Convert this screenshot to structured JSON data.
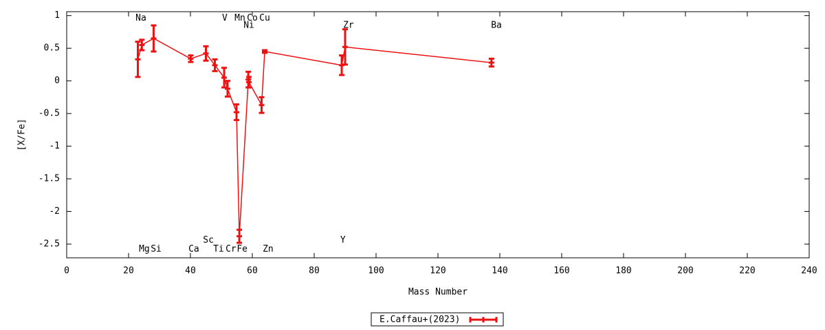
{
  "chart_data": {
    "type": "errorline",
    "xlabel": "Mass Number",
    "ylabel": "[X/Fe]",
    "xlim": [
      0,
      240
    ],
    "ylim": [
      -2.71,
      1.06
    ],
    "xticks": [
      0,
      20,
      40,
      60,
      80,
      100,
      120,
      140,
      160,
      180,
      200,
      220,
      240
    ],
    "yticks": [
      1,
      0.5,
      0,
      -0.5,
      -1,
      -1.5,
      -2,
      -2.5
    ],
    "legend": "bottom-center",
    "series": [
      {
        "name": "E.Caffau+(2023)",
        "color": "#ee1111",
        "x": [
          23.0,
          24.3,
          28.1,
          40.1,
          45.0,
          47.9,
          50.9,
          52.0,
          54.9,
          55.8,
          58.7,
          58.9,
          63.0,
          64.0,
          88.9,
          90.0,
          137.3
        ],
        "values": [
          0.33,
          0.55,
          0.65,
          0.34,
          0.42,
          0.24,
          0.05,
          -0.12,
          -0.48,
          -2.38,
          0.02,
          -0.02,
          -0.37,
          0.45,
          0.24,
          0.52,
          0.28
        ],
        "errors": [
          0.27,
          0.08,
          0.2,
          0.05,
          0.11,
          0.09,
          0.15,
          0.12,
          0.12,
          0.1,
          0.12,
          0.08,
          0.12,
          0.02,
          0.15,
          0.27,
          0.06
        ]
      }
    ],
    "annotations": [
      {
        "text": "Na",
        "x": 24,
        "y": 0.96
      },
      {
        "text": "V",
        "x": 51.1,
        "y": 0.96
      },
      {
        "text": "Mn",
        "x": 56,
        "y": 0.96
      },
      {
        "text": "Co",
        "x": 60,
        "y": 0.96
      },
      {
        "text": "Cu",
        "x": 64,
        "y": 0.96
      },
      {
        "text": "Ni",
        "x": 58.9,
        "y": 0.85
      },
      {
        "text": "Zr",
        "x": 91.1,
        "y": 0.85
      },
      {
        "text": "Ba",
        "x": 138.9,
        "y": 0.85
      },
      {
        "text": "Mg",
        "x": 25.1,
        "y": -2.58
      },
      {
        "text": "Si",
        "x": 28.9,
        "y": -2.58
      },
      {
        "text": "Ca",
        "x": 41.1,
        "y": -2.58
      },
      {
        "text": "Sc",
        "x": 45.8,
        "y": -2.44
      },
      {
        "text": "Ti",
        "x": 49.1,
        "y": -2.58
      },
      {
        "text": "Cr",
        "x": 53.1,
        "y": -2.58
      },
      {
        "text": "Fe",
        "x": 56.7,
        "y": -2.58
      },
      {
        "text": "Zn",
        "x": 65.1,
        "y": -2.58
      },
      {
        "text": "Y",
        "x": 89.3,
        "y": -2.44
      }
    ]
  }
}
